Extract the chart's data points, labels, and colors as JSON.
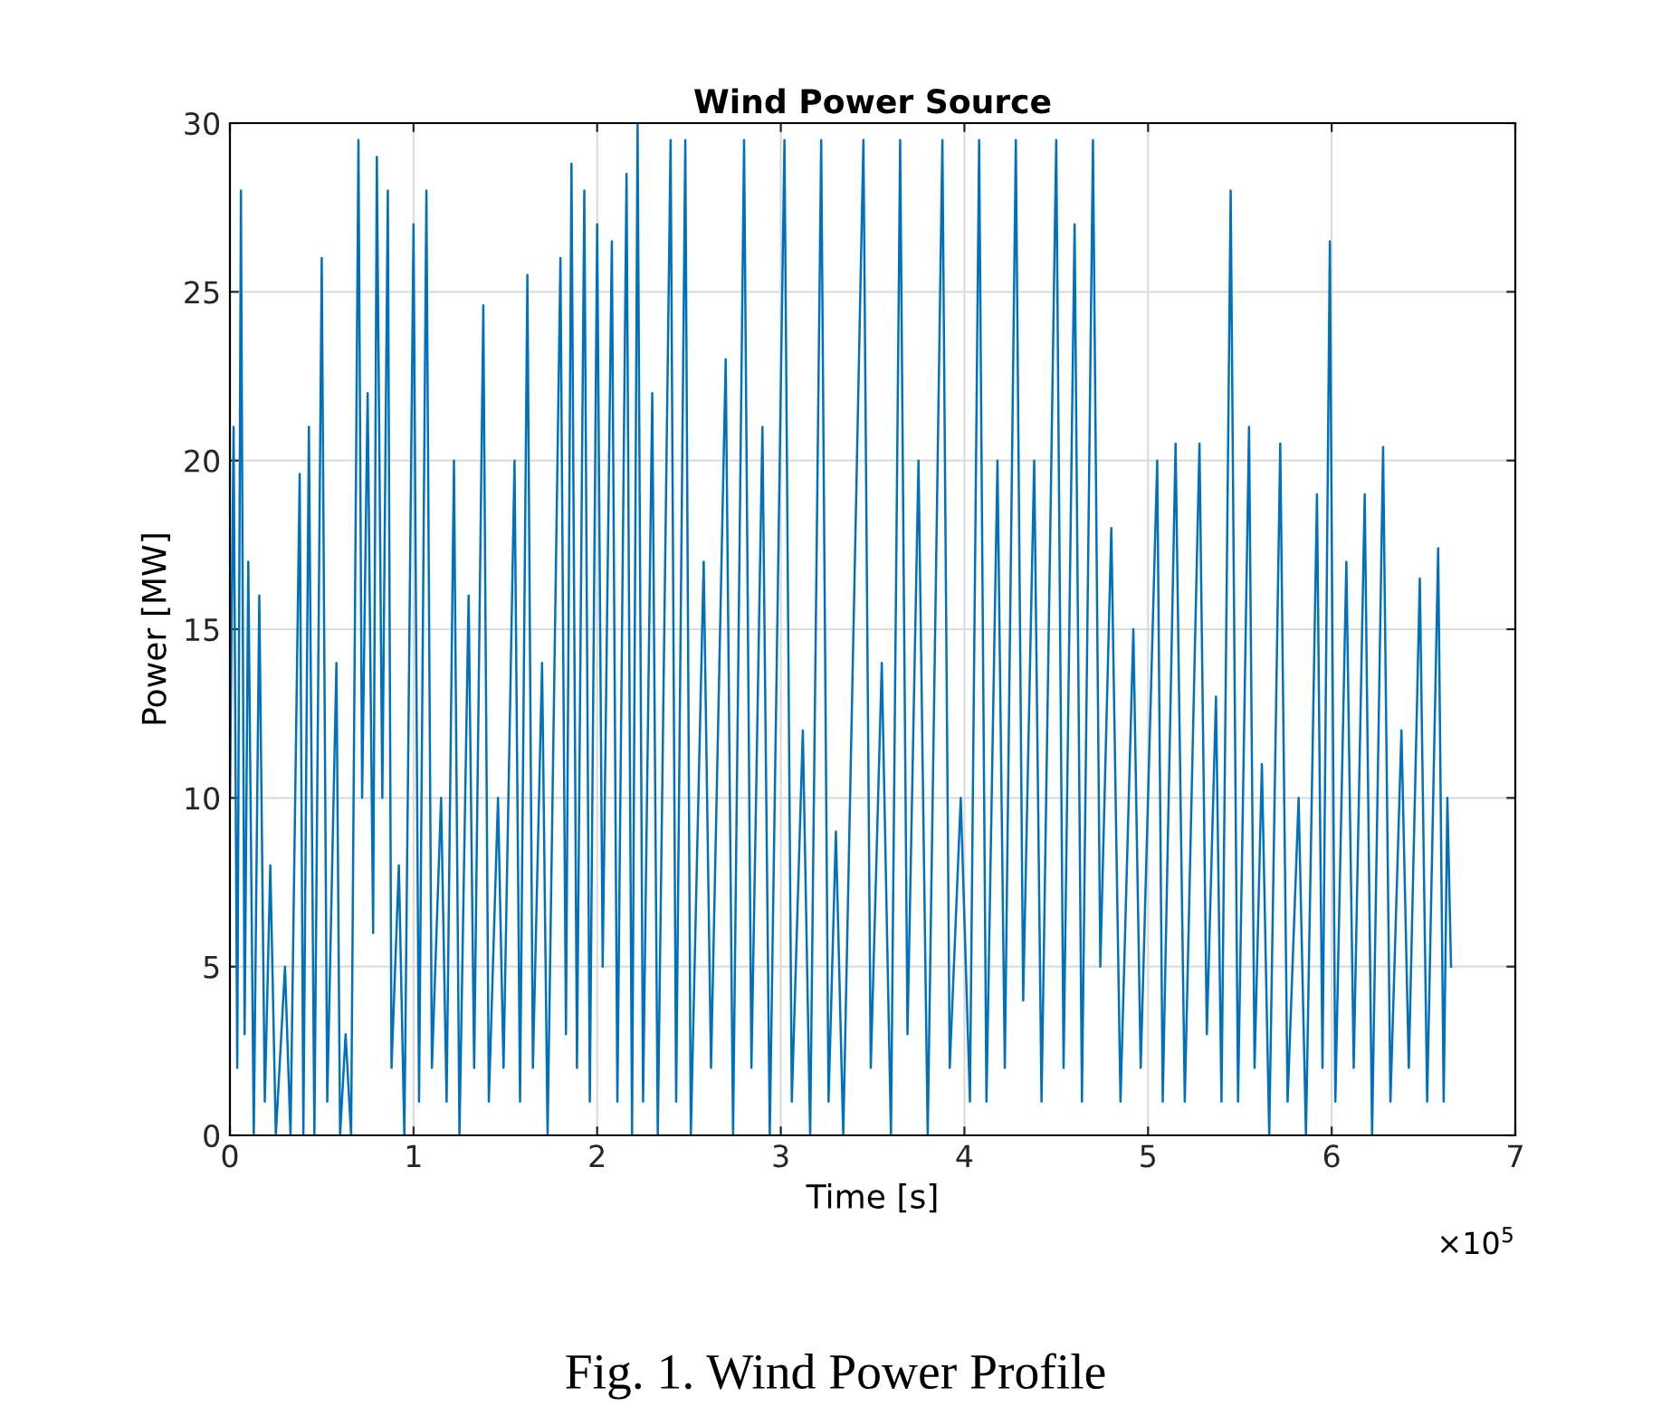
{
  "chart_data": {
    "type": "line",
    "title": "Wind Power Source",
    "xlabel": "Time [s]",
    "ylabel": "Power [MW]",
    "x": [
      0,
      0.02,
      0.04,
      0.06,
      0.08,
      0.1,
      0.13,
      0.16,
      0.19,
      0.22,
      0.25,
      0.3,
      0.33,
      0.38,
      0.4,
      0.43,
      0.46,
      0.5,
      0.53,
      0.58,
      0.6,
      0.63,
      0.66,
      0.7,
      0.72,
      0.75,
      0.78,
      0.8,
      0.83,
      0.86,
      0.88,
      0.92,
      0.95,
      1.0,
      1.03,
      1.07,
      1.1,
      1.15,
      1.18,
      1.22,
      1.25,
      1.3,
      1.33,
      1.38,
      1.41,
      1.46,
      1.49,
      1.55,
      1.58,
      1.62,
      1.65,
      1.7,
      1.73,
      1.8,
      1.83,
      1.86,
      1.89,
      1.93,
      1.96,
      2.0,
      2.03,
      2.08,
      2.11,
      2.16,
      2.19,
      2.22,
      2.25,
      2.3,
      2.33,
      2.4,
      2.43,
      2.48,
      2.51,
      2.58,
      2.62,
      2.7,
      2.74,
      2.8,
      2.84,
      2.9,
      2.94,
      3.02,
      3.06,
      3.12,
      3.16,
      3.22,
      3.26,
      3.3,
      3.34,
      3.45,
      3.49,
      3.55,
      3.6,
      3.65,
      3.69,
      3.75,
      3.8,
      3.88,
      3.92,
      3.98,
      4.03,
      4.08,
      4.12,
      4.18,
      4.22,
      4.28,
      4.32,
      4.38,
      4.42,
      4.5,
      4.54,
      4.6,
      4.64,
      4.7,
      4.74,
      4.8,
      4.85,
      4.92,
      4.96,
      5.05,
      5.08,
      5.15,
      5.2,
      5.28,
      5.32,
      5.37,
      5.4,
      5.45,
      5.49,
      5.55,
      5.58,
      5.62,
      5.66,
      5.72,
      5.76,
      5.82,
      5.86,
      5.92,
      5.95,
      5.99,
      6.02,
      6.08,
      6.12,
      6.18,
      6.22,
      6.28,
      6.32,
      6.38,
      6.42,
      6.48,
      6.52,
      6.58,
      6.61,
      6.63,
      6.65
    ],
    "series": [
      {
        "color": "#0072bd",
        "values": [
          10,
          21,
          2,
          28,
          3,
          17,
          0,
          16,
          1,
          8,
          0,
          5,
          0,
          19.6,
          0,
          21,
          0,
          26,
          1,
          14,
          0,
          3,
          0,
          29.5,
          10,
          22,
          6,
          29,
          10,
          28,
          2,
          8,
          0,
          27,
          1,
          28,
          2,
          10,
          1,
          20,
          0,
          16,
          2,
          24.6,
          1,
          10,
          2,
          20,
          1,
          25.5,
          2,
          14,
          0,
          26,
          3,
          28.8,
          2,
          28,
          1,
          27,
          5,
          26.5,
          1,
          28.5,
          0,
          30,
          1,
          22,
          0,
          29.5,
          1,
          29.5,
          0,
          17,
          2,
          23,
          0,
          29.5,
          2,
          21,
          0,
          29.5,
          1,
          12,
          0,
          29.5,
          1,
          9,
          0,
          29.5,
          2,
          14,
          0,
          29.5,
          3,
          20,
          0,
          29.5,
          2,
          10,
          1,
          29.5,
          1,
          20,
          2,
          29.5,
          4,
          20,
          1,
          29.5,
          2,
          27,
          1,
          29.5,
          5,
          18,
          1,
          15,
          2,
          20,
          1,
          20.5,
          1,
          20.5,
          3,
          13,
          1,
          28,
          1,
          21,
          2,
          11,
          0,
          20.5,
          1,
          10,
          0,
          19,
          2,
          26.5,
          1,
          17,
          2,
          19,
          0,
          20.4,
          1,
          12,
          2,
          16.5,
          1,
          17.4,
          1,
          10,
          5
        ]
      }
    ],
    "xlim": [
      0,
      7
    ],
    "xticks": [
      0,
      1,
      2,
      3,
      4,
      5,
      6,
      7
    ],
    "ylim": [
      0,
      30
    ],
    "yticks": [
      0,
      5,
      10,
      15,
      20,
      25,
      30
    ],
    "grid": true,
    "line_style": "solid",
    "marker": "none",
    "annotations": [
      "×10$^{5}$",
      "Fig. 1. Wind Power Profile"
    ]
  }
}
